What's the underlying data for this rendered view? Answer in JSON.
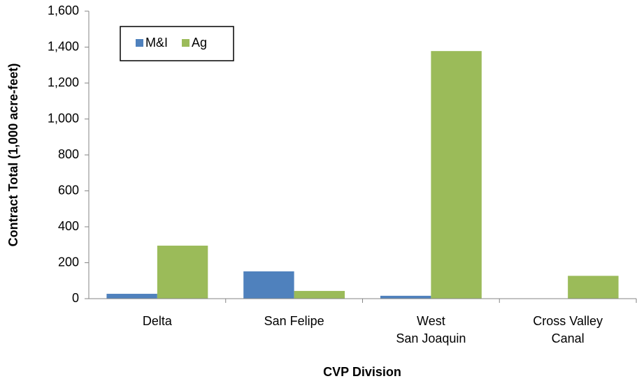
{
  "chart_data": {
    "type": "bar",
    "x_label": "CVP Division",
    "y_label": "Contract Total (1,000 acre-feet)",
    "categories": [
      "Delta",
      "San Felipe",
      "West\nSan Joaquin",
      "Cross Valley\nCanal"
    ],
    "series": [
      {
        "name": "M&I",
        "color": "#4f81bd",
        "values": [
          27,
          152,
          16,
          0
        ]
      },
      {
        "name": "Ag",
        "color": "#9bbb59",
        "values": [
          295,
          43,
          1378,
          127
        ]
      }
    ],
    "ylim": [
      0,
      1600
    ],
    "yticks": [
      0,
      200,
      400,
      600,
      800,
      {
        "value": 1000,
        "label": "1,000"
      },
      {
        "value": 1200,
        "label": "1,200"
      },
      {
        "value": 1400,
        "label": "1,400"
      },
      {
        "value": 1600,
        "label": "1,600"
      }
    ],
    "grid": false,
    "legend": "upper-left"
  }
}
